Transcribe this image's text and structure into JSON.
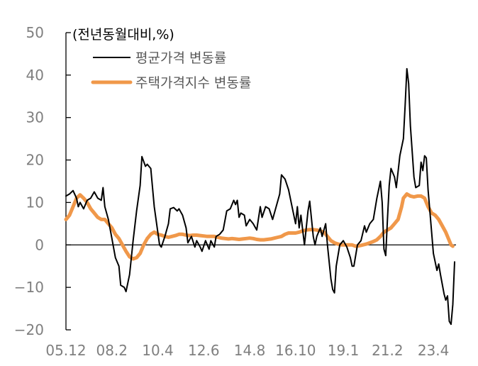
{
  "chart_data": {
    "type": "line",
    "unit_label": "(전년동월대비,%)",
    "ylim": [
      -20,
      50
    ],
    "y_ticks": [
      50,
      40,
      30,
      20,
      10,
      0,
      -10,
      -20
    ],
    "x_ticks": [
      "05.12",
      "08.2",
      "10.4",
      "12.6",
      "14.8",
      "16.10",
      "19.1",
      "21.2",
      "23.4"
    ],
    "x_tick_index": [
      0,
      26,
      52,
      78,
      104,
      130,
      157,
      182,
      208
    ],
    "legend_position": "top-left",
    "colors": {
      "series1": "#000000",
      "series2": "#f0984a",
      "axis": "#000000",
      "zero_line": "#000000"
    },
    "series": [
      {
        "name": "평균가격 변동률",
        "points": [
          [
            0,
            11.5
          ],
          [
            2,
            12
          ],
          [
            4,
            12.8
          ],
          [
            6,
            11
          ],
          [
            7,
            9
          ],
          [
            8,
            10
          ],
          [
            10,
            8.5
          ],
          [
            12,
            10.5
          ],
          [
            14,
            11
          ],
          [
            16,
            12.5
          ],
          [
            18,
            11
          ],
          [
            20,
            10.5
          ],
          [
            21,
            13.5
          ],
          [
            22,
            9
          ],
          [
            24,
            6
          ],
          [
            26,
            1.5
          ],
          [
            28,
            -3
          ],
          [
            30,
            -5
          ],
          [
            31,
            -9.5
          ],
          [
            33,
            -10
          ],
          [
            34,
            -11
          ],
          [
            36,
            -7
          ],
          [
            38,
            1
          ],
          [
            40,
            8
          ],
          [
            42,
            14
          ],
          [
            43,
            20.8
          ],
          [
            45,
            18.5
          ],
          [
            46,
            19
          ],
          [
            48,
            18
          ],
          [
            50,
            9
          ],
          [
            52,
            3
          ],
          [
            53,
            0
          ],
          [
            54,
            -0.5
          ],
          [
            56,
            2
          ],
          [
            58,
            5
          ],
          [
            59,
            8.5
          ],
          [
            61,
            8.8
          ],
          [
            63,
            8
          ],
          [
            64,
            8.5
          ],
          [
            66,
            7
          ],
          [
            68,
            4
          ],
          [
            69,
            0.5
          ],
          [
            71,
            2
          ],
          [
            73,
            -0.5
          ],
          [
            74,
            1
          ],
          [
            76,
            -0.5
          ],
          [
            77,
            -1.5
          ],
          [
            79,
            1
          ],
          [
            81,
            -1
          ],
          [
            82,
            1
          ],
          [
            84,
            -0.5
          ],
          [
            85,
            2
          ],
          [
            87,
            2.5
          ],
          [
            89,
            3.5
          ],
          [
            91,
            8
          ],
          [
            93,
            8.5
          ],
          [
            95,
            10.5
          ],
          [
            96,
            9.5
          ],
          [
            97,
            10.5
          ],
          [
            98,
            6.5
          ],
          [
            99,
            7.5
          ],
          [
            101,
            7
          ],
          [
            102,
            4.5
          ],
          [
            104,
            6
          ],
          [
            106,
            5
          ],
          [
            108,
            3.5
          ],
          [
            110,
            9
          ],
          [
            111,
            6.5
          ],
          [
            113,
            9
          ],
          [
            115,
            8.5
          ],
          [
            117,
            6
          ],
          [
            119,
            9
          ],
          [
            121,
            12
          ],
          [
            122,
            16.5
          ],
          [
            124,
            15.5
          ],
          [
            126,
            13
          ],
          [
            128,
            9
          ],
          [
            130,
            5
          ],
          [
            131,
            9
          ],
          [
            132,
            4
          ],
          [
            133,
            7
          ],
          [
            135,
            0
          ],
          [
            137,
            8
          ],
          [
            138,
            10.3
          ],
          [
            140,
            2
          ],
          [
            141,
            0
          ],
          [
            142,
            2
          ],
          [
            144,
            4
          ],
          [
            145,
            2
          ],
          [
            147,
            5
          ],
          [
            148,
            0
          ],
          [
            150,
            -8
          ],
          [
            151,
            -10.5
          ],
          [
            152,
            -11.3
          ],
          [
            153,
            -5
          ],
          [
            155,
            0
          ],
          [
            157,
            1
          ],
          [
            159,
            -0.5
          ],
          [
            161,
            -3
          ],
          [
            162,
            -5
          ],
          [
            163,
            -5
          ],
          [
            165,
            0
          ],
          [
            167,
            1
          ],
          [
            169,
            4.5
          ],
          [
            170,
            3
          ],
          [
            172,
            5
          ],
          [
            174,
            6
          ],
          [
            176,
            11
          ],
          [
            178,
            15
          ],
          [
            179,
            10
          ],
          [
            180,
            -1
          ],
          [
            181,
            -2.5
          ],
          [
            182,
            6
          ],
          [
            183,
            14
          ],
          [
            184,
            18
          ],
          [
            186,
            16
          ],
          [
            187,
            13.5
          ],
          [
            189,
            21
          ],
          [
            191,
            25
          ],
          [
            192,
            33
          ],
          [
            193,
            41.5
          ],
          [
            194,
            38
          ],
          [
            195,
            28
          ],
          [
            196,
            22
          ],
          [
            197,
            16
          ],
          [
            198,
            13.5
          ],
          [
            200,
            14
          ],
          [
            201,
            19.5
          ],
          [
            202,
            17.5
          ],
          [
            203,
            21
          ],
          [
            204,
            20.5
          ],
          [
            205,
            13
          ],
          [
            207,
            3
          ],
          [
            208,
            -2
          ],
          [
            209,
            -4
          ],
          [
            210,
            -6
          ],
          [
            211,
            -4.5
          ],
          [
            212,
            -7
          ],
          [
            214,
            -11.5
          ],
          [
            215,
            -13
          ],
          [
            216,
            -12
          ],
          [
            217,
            -18
          ],
          [
            218,
            -18.7
          ],
          [
            219,
            -14
          ],
          [
            220,
            -4
          ]
        ]
      },
      {
        "name": "주택가격지수 변동률",
        "points": [
          [
            0,
            6
          ],
          [
            2,
            7
          ],
          [
            4,
            9
          ],
          [
            6,
            11
          ],
          [
            8,
            11.8
          ],
          [
            10,
            11
          ],
          [
            12,
            10
          ],
          [
            14,
            8.5
          ],
          [
            16,
            7.5
          ],
          [
            18,
            6.5
          ],
          [
            20,
            6
          ],
          [
            22,
            6
          ],
          [
            24,
            5
          ],
          [
            26,
            4
          ],
          [
            28,
            2.5
          ],
          [
            30,
            1.5
          ],
          [
            32,
            0
          ],
          [
            34,
            -1.5
          ],
          [
            36,
            -2.8
          ],
          [
            38,
            -3.3
          ],
          [
            40,
            -3
          ],
          [
            42,
            -2
          ],
          [
            44,
            0
          ],
          [
            46,
            1.5
          ],
          [
            48,
            2.5
          ],
          [
            50,
            3
          ],
          [
            52,
            2.5
          ],
          [
            54,
            2.3
          ],
          [
            56,
            2
          ],
          [
            58,
            1.8
          ],
          [
            60,
            2
          ],
          [
            62,
            2.2
          ],
          [
            64,
            2.5
          ],
          [
            66,
            2.5
          ],
          [
            68,
            2.3
          ],
          [
            70,
            2.2
          ],
          [
            72,
            2.3
          ],
          [
            74,
            2.3
          ],
          [
            76,
            2.2
          ],
          [
            78,
            2.1
          ],
          [
            80,
            2
          ],
          [
            82,
            2
          ],
          [
            84,
            2
          ],
          [
            86,
            1.8
          ],
          [
            88,
            1.6
          ],
          [
            90,
            1.5
          ],
          [
            92,
            1.4
          ],
          [
            94,
            1.5
          ],
          [
            96,
            1.4
          ],
          [
            98,
            1.3
          ],
          [
            100,
            1.4
          ],
          [
            102,
            1.5
          ],
          [
            104,
            1.6
          ],
          [
            106,
            1.5
          ],
          [
            108,
            1.3
          ],
          [
            110,
            1.2
          ],
          [
            112,
            1.2
          ],
          [
            114,
            1.3
          ],
          [
            116,
            1.4
          ],
          [
            118,
            1.6
          ],
          [
            120,
            1.8
          ],
          [
            122,
            2
          ],
          [
            124,
            2.5
          ],
          [
            126,
            2.8
          ],
          [
            128,
            2.8
          ],
          [
            130,
            2.8
          ],
          [
            132,
            3
          ],
          [
            134,
            3.3
          ],
          [
            136,
            3.5
          ],
          [
            138,
            3.6
          ],
          [
            140,
            3.6
          ],
          [
            142,
            3.5
          ],
          [
            144,
            3.3
          ],
          [
            146,
            3
          ],
          [
            148,
            2
          ],
          [
            150,
            1
          ],
          [
            152,
            0.5
          ],
          [
            154,
            0.2
          ],
          [
            156,
            0
          ],
          [
            158,
            0
          ],
          [
            160,
            0
          ],
          [
            162,
            0
          ],
          [
            164,
            -0.3
          ],
          [
            166,
            -0.2
          ],
          [
            168,
            0
          ],
          [
            170,
            0.2
          ],
          [
            172,
            0.5
          ],
          [
            174,
            0.8
          ],
          [
            176,
            1.2
          ],
          [
            178,
            2
          ],
          [
            180,
            3
          ],
          [
            182,
            3.5
          ],
          [
            184,
            4
          ],
          [
            186,
            5
          ],
          [
            188,
            6
          ],
          [
            190,
            9
          ],
          [
            191,
            11
          ],
          [
            193,
            12
          ],
          [
            195,
            11.5
          ],
          [
            197,
            11.3
          ],
          [
            199,
            11.5
          ],
          [
            201,
            11.5
          ],
          [
            203,
            11
          ],
          [
            205,
            9
          ],
          [
            207,
            7.5
          ],
          [
            209,
            7
          ],
          [
            211,
            6
          ],
          [
            213,
            4.5
          ],
          [
            215,
            3
          ],
          [
            217,
            1
          ],
          [
            218,
            0
          ],
          [
            219,
            -0.3
          ]
        ]
      }
    ]
  }
}
